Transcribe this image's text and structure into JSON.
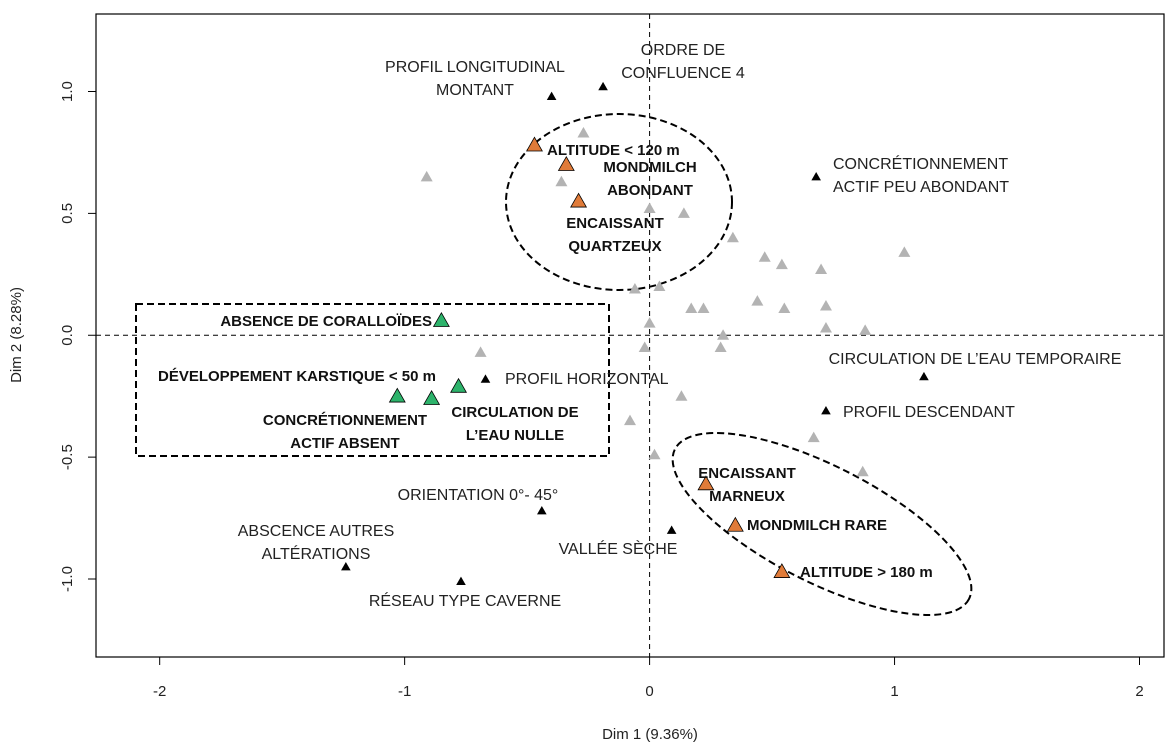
{
  "chart_data": {
    "type": "scatter",
    "xlabel": "Dim 1 (9.36%)",
    "ylabel": "Dim 2 (8.28%)",
    "xlim": [
      -2.26,
      2.1
    ],
    "ylim": [
      -1.32,
      1.318
    ],
    "xticks": [
      -2,
      -1,
      0,
      1,
      2
    ],
    "yticks": [
      {
        "value": -1,
        "label": "-1.0"
      },
      -0.5,
      {
        "value": 0,
        "label": "0.0"
      },
      0.5,
      {
        "value": 1,
        "label": "1.0"
      }
    ],
    "series": [
      {
        "color": "#000000",
        "x": [
          -0.4,
          -0.19,
          0.68,
          1.12,
          0.72,
          -0.67,
          -0.44,
          0.09,
          -1.24,
          -0.77
        ],
        "values": [
          0.98,
          1.02,
          0.65,
          -0.17,
          -0.31,
          -0.18,
          -0.72,
          -0.8,
          -0.95,
          -1.01
        ],
        "labels": [
          [
            "PROFIL LONGITUDINAL",
            "MONTANT"
          ],
          [
            "ORDRE DE",
            "CONFLUENCE 4"
          ],
          [
            "CONCRÉTIONNEMENT",
            "ACTIF PEU ABONDANT"
          ],
          [
            "CIRCULATION DE L’EAU TEMPORAIRE"
          ],
          [
            "PROFIL DESCENDANT"
          ],
          [
            "PROFIL HORIZONTAL"
          ],
          [
            "ORIENTATION 0°- 45°"
          ],
          [
            "VALLÉE SÈCHE"
          ],
          [
            "ABSCENCE AUTRES",
            "ALTÉRATIONS"
          ],
          [
            "RÉSEAU TYPE CAVERNE"
          ]
        ]
      },
      {
        "color": "#b3b3b3",
        "x": [
          -0.91,
          -0.27,
          -0.36,
          0.0,
          0.14,
          0.34,
          0.47,
          0.54,
          0.7,
          1.04,
          -0.06,
          0.04,
          0.17,
          0.22,
          0.44,
          0.55,
          0.72,
          0.72,
          0.88,
          0.0,
          0.3,
          0.29,
          -0.02,
          -0.69,
          0.13,
          -0.08,
          0.67,
          0.02,
          0.87
        ],
        "values": [
          0.65,
          0.83,
          0.63,
          0.52,
          0.5,
          0.4,
          0.32,
          0.29,
          0.27,
          0.34,
          0.19,
          0.2,
          0.11,
          0.11,
          0.14,
          0.11,
          0.12,
          0.03,
          0.02,
          0.05,
          0.0,
          -0.05,
          -0.05,
          -0.07,
          -0.25,
          -0.35,
          -0.42,
          -0.49,
          -0.56
        ]
      },
      {
        "color": "#e07b39",
        "x": [
          -0.47,
          -0.34,
          -0.29,
          0.23,
          0.35,
          0.54
        ],
        "values": [
          0.78,
          0.7,
          0.55,
          -0.61,
          -0.78,
          -0.97
        ],
        "labels": [
          [
            "ALTITUDE < 120 m"
          ],
          [
            "MONDMILCH",
            "ABONDANT"
          ],
          [
            "ENCAISSANT",
            "QUARTZEUX"
          ],
          [
            "ENCAISSANT",
            "MARNEUX"
          ],
          [
            "MONDMILCH RARE"
          ],
          [
            "ALTITUDE > 180 m"
          ]
        ]
      },
      {
        "color": "#2db36b",
        "x": [
          -0.85,
          -1.03,
          -0.89,
          -0.78
        ],
        "values": [
          0.06,
          -0.25,
          -0.26,
          -0.21
        ],
        "labels": [
          [
            "ABSENCE DE CORALLOÏDES"
          ],
          [
            "DÉVELOPPEMENT KARSTIQUE < 50 m"
          ],
          [
            "CONCRÉTIONNEMENT",
            "ACTIF ABSENT"
          ],
          [
            "CIRCULATION DE",
            "L’EAU NULLE"
          ]
        ]
      }
    ]
  }
}
